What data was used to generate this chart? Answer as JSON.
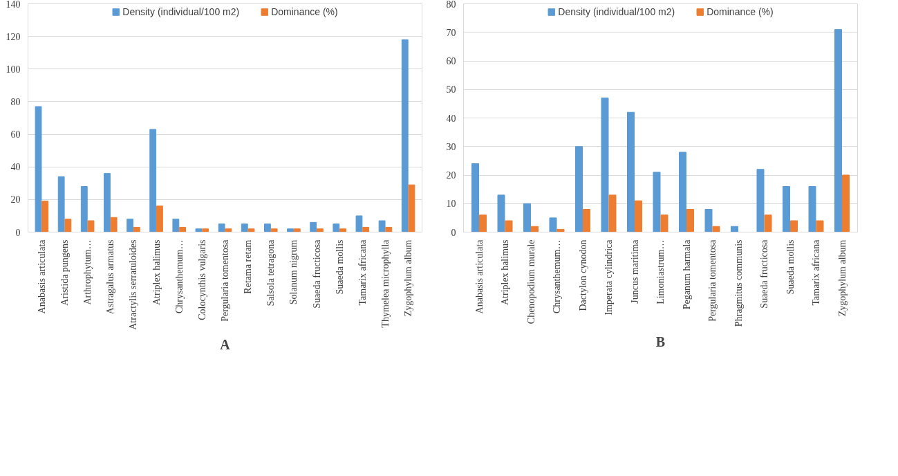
{
  "chart_data": [
    {
      "type": "bar",
      "annotations": [
        "A"
      ],
      "legend": "top",
      "grid": "y",
      "categories": [
        "Anabasis articulata",
        "Aristida pungens",
        "Arthrophytum…",
        "Astragalus armatus",
        "Atractylis serratuloides",
        "Atriplex halimus",
        "Chrysanthemum…",
        "Colocynthis vulgaris",
        "Pergularia tomentosa",
        "Retama retam",
        "Salsola tetragona",
        "Solanum nigrum",
        "Suaeda fructicosa",
        "Suaeda mollis",
        "Tamarix africana",
        "Thymelea microphylla",
        "Zygophylum album"
      ],
      "series": [
        {
          "name": "Density (individual/100 m2)",
          "color": "#5b9bd5",
          "values": [
            77,
            34,
            28,
            36,
            8,
            63,
            8,
            2,
            5,
            5,
            5,
            2,
            6,
            5,
            10,
            7,
            118
          ]
        },
        {
          "name": "Dominance (%)",
          "color": "#ed7d31",
          "values": [
            19,
            8,
            7,
            9,
            3,
            16,
            3,
            2,
            2,
            2,
            2,
            2,
            2,
            2,
            3,
            3,
            29
          ]
        }
      ],
      "ylim": [
        0,
        140
      ],
      "yticks": [
        0,
        20,
        40,
        60,
        80,
        100,
        120,
        140
      ]
    },
    {
      "type": "bar",
      "annotations": [
        "B"
      ],
      "legend": "top",
      "grid": "y",
      "categories": [
        "Anabasis articulata",
        "Atriplex halimus",
        "Chenopodium murale",
        "Chrysanthemum…",
        "Dactylon cynodon",
        "Imperata cylindrica",
        "Juncus maritima",
        "Limoniastrum…",
        "Peganum harmala",
        "Pergularia tomentosa",
        "Phragmitus communis",
        "Suaeda fructicosa",
        "Suaeda mollis",
        "Tamarix africana",
        "Zygophylum album"
      ],
      "series": [
        {
          "name": "Density (individual/100 m2)",
          "color": "#5b9bd5",
          "values": [
            24,
            13,
            10,
            5,
            30,
            47,
            42,
            21,
            28,
            8,
            2,
            22,
            16,
            16,
            71
          ]
        },
        {
          "name": "Dominance (%)",
          "color": "#ed7d31",
          "values": [
            6,
            4,
            2,
            1,
            8,
            13,
            11,
            6,
            8,
            2,
            null,
            6,
            4,
            4,
            20
          ]
        }
      ],
      "ylim": [
        0,
        80
      ],
      "yticks": [
        0,
        10,
        20,
        30,
        40,
        50,
        60,
        70,
        80
      ]
    }
  ]
}
